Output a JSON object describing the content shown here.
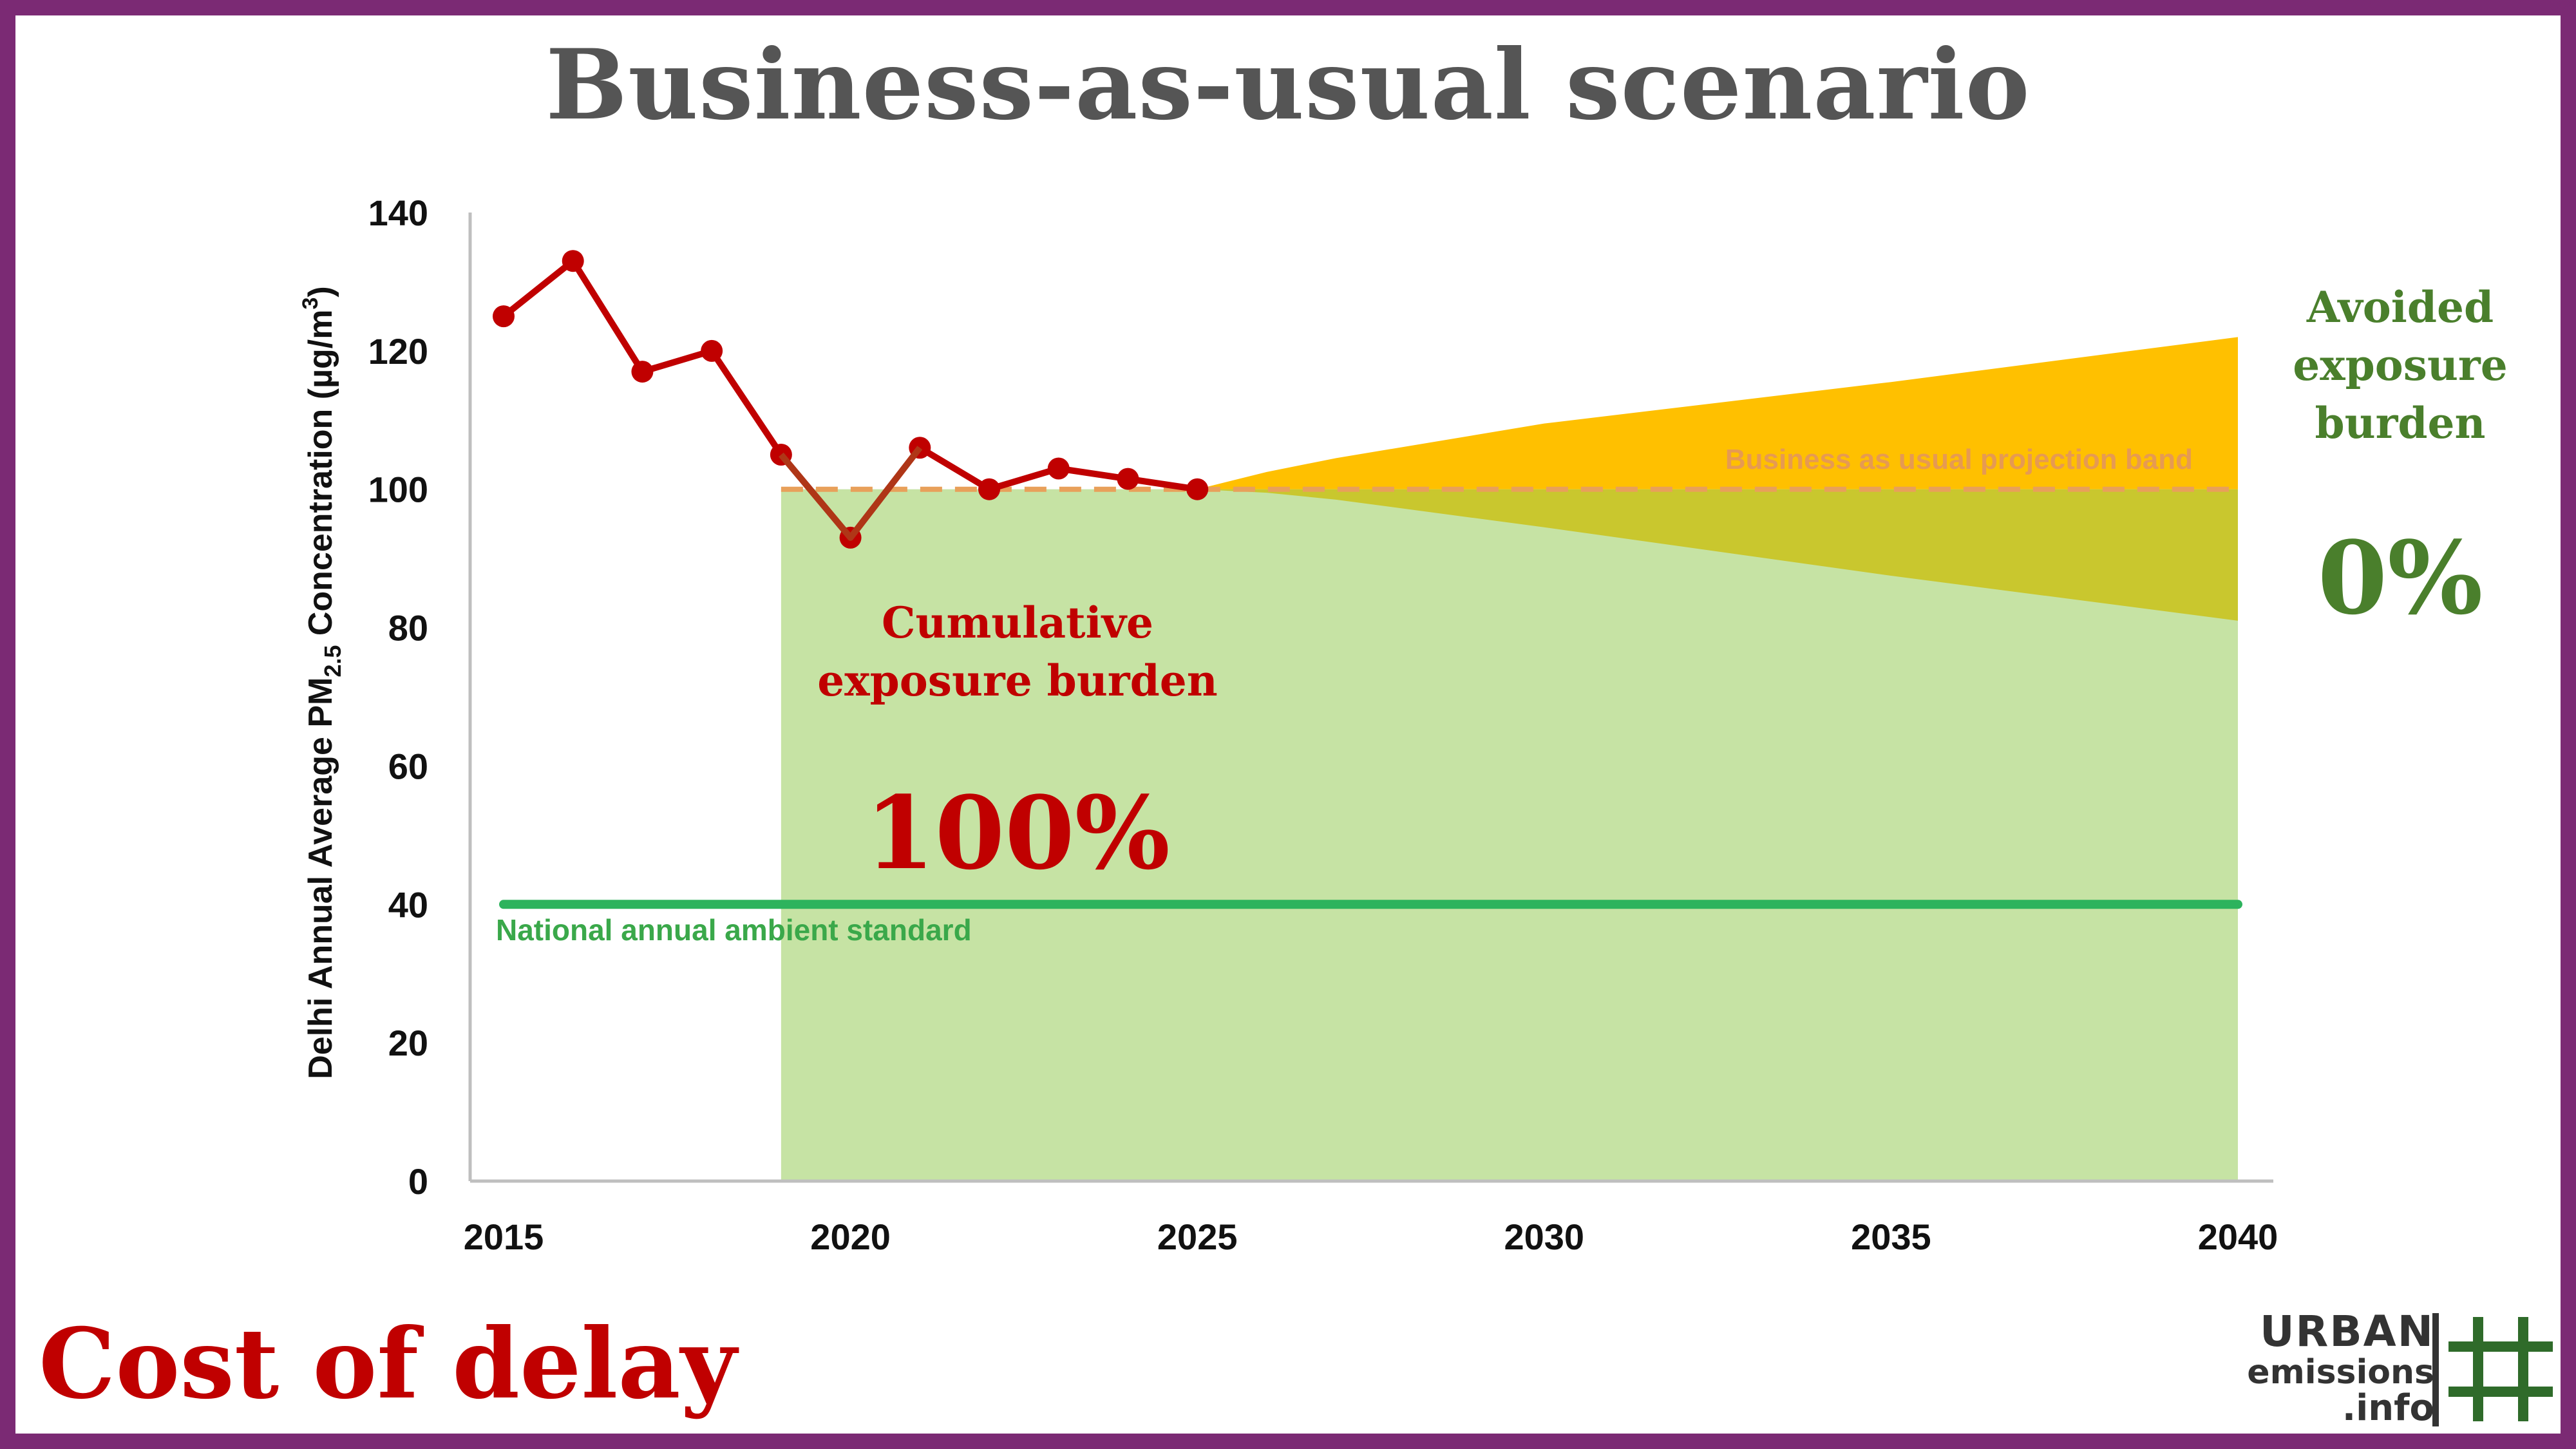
{
  "title": "Business-as-usual scenario",
  "footer_title": "Cost of delay",
  "logo": {
    "line1": "URBAN",
    "line2": "emissions",
    "line3": ".info",
    "icon": "hash-grid-icon"
  },
  "colors": {
    "frame": "#7b2a74",
    "observed": "#c00000",
    "projection_band": "#ffc000",
    "projection_dashed": "#e8a05a",
    "burden_area": "#c6e3a4",
    "overlap_area": "#c9c72e",
    "standard_line": "#2db35d",
    "avoided_text": "#4a7f2c"
  },
  "annotations": {
    "projection_band_label": "Business as usual projection band",
    "standard_label": "National annual ambient standard",
    "cumulative_label_line1": "Cumulative",
    "cumulative_label_line2": "exposure burden",
    "cumulative_value": "100%",
    "avoided_label_line1": "Avoided",
    "avoided_label_line2": "exposure",
    "avoided_label_line3": "burden",
    "avoided_value": "0%"
  },
  "chart_data": {
    "type": "line",
    "title": "Business-as-usual scenario",
    "xlabel": "",
    "ylabel": "Delhi Annual Average PM2.5 Concentration (µg/m³)",
    "xlim": [
      2015,
      2040
    ],
    "ylim": [
      0,
      140
    ],
    "x_ticks": [
      "2015",
      "2020",
      "2025",
      "2030",
      "2035",
      "2040"
    ],
    "y_ticks": [
      "0",
      "20",
      "40",
      "60",
      "80",
      "100",
      "120",
      "140"
    ],
    "grid": false,
    "series": [
      {
        "x": [
          2015,
          2016,
          2017,
          2018,
          2019,
          2020,
          2021,
          2022,
          2023,
          2024,
          2025
        ],
        "values": [
          125,
          133,
          117,
          120,
          105,
          93,
          106,
          100,
          103,
          101.5,
          100
        ]
      }
    ],
    "projection_band": {
      "x": [
        2025,
        2026,
        2027,
        2030,
        2035,
        2040
      ],
      "upper": [
        100,
        102.5,
        104.5,
        109.5,
        115.5,
        122
      ],
      "lower": [
        100,
        99.5,
        98.5,
        94.5,
        87.5,
        81
      ]
    },
    "business_as_usual_level": {
      "x": [
        2019,
        2040
      ],
      "value": 100
    },
    "burden_area": {
      "x": [
        2019,
        2040
      ],
      "value": 100
    },
    "national_standard": {
      "x": [
        2015,
        2040
      ],
      "value": 40
    }
  }
}
